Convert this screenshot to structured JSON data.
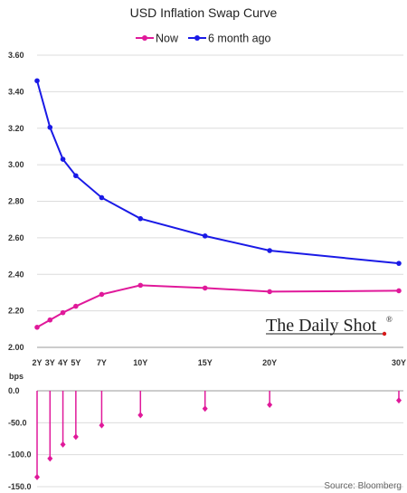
{
  "chart_data": [
    {
      "type": "line",
      "title": "USD Inflation Swap Curve",
      "categories": [
        "2Y",
        "3Y",
        "4Y",
        "5Y",
        "7Y",
        "10Y",
        "15Y",
        "20Y",
        "30Y"
      ],
      "x": [
        2,
        3,
        4,
        5,
        7,
        10,
        15,
        20,
        30
      ],
      "series": [
        {
          "name": "Now",
          "color": "#e0199a",
          "values": [
            2.11,
            2.15,
            2.19,
            2.225,
            2.29,
            2.34,
            2.325,
            2.305,
            2.31
          ]
        },
        {
          "name": "6 month ago",
          "color": "#1a1ae6",
          "values": [
            3.46,
            3.205,
            3.03,
            2.94,
            2.82,
            2.705,
            2.61,
            2.53,
            2.46
          ]
        }
      ],
      "ylim": [
        2.0,
        3.6
      ],
      "yticks": [
        "2.00",
        "2.20",
        "2.40",
        "2.60",
        "2.80",
        "3.00",
        "3.20",
        "3.40",
        "3.60"
      ],
      "grid": true,
      "legend_position": "top-center"
    },
    {
      "type": "bar",
      "ylabel": "bps",
      "categories": [
        "2Y",
        "3Y",
        "4Y",
        "5Y",
        "7Y",
        "10Y",
        "15Y",
        "20Y",
        "30Y"
      ],
      "x": [
        2,
        3,
        4,
        5,
        7,
        10,
        15,
        20,
        30
      ],
      "values": [
        -135,
        -106,
        -84,
        -72,
        -54,
        -38,
        -28,
        -22,
        -15
      ],
      "color": "#e0199a",
      "ylim": [
        -150,
        0
      ],
      "yticks": [
        "0.0",
        "-50.0",
        "-100.0",
        "-150.0"
      ]
    }
  ],
  "watermark": "The Daily Shot",
  "watermark_mark": "®",
  "source": "Source: Bloomberg"
}
